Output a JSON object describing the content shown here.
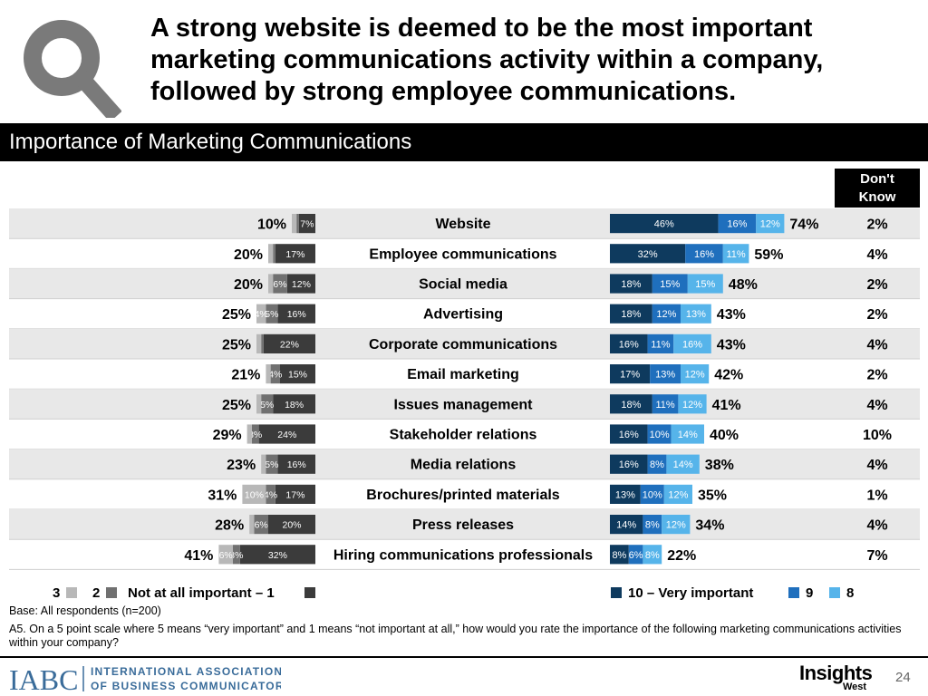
{
  "headline": "A strong website is deemed to be the most important marketing communications activity within a company, followed by strong employee communications.",
  "banner": "Importance of Marketing Communications",
  "dont_know_header": [
    "Don't",
    "Know"
  ],
  "colors": {
    "c10": "#0e3a5e",
    "c9": "#1f6fbd",
    "c8": "#56b4ea",
    "c3": "#b8b8b8",
    "c2": "#707070",
    "c1": "#3b3b3b",
    "row_stripe": "#e8e8e8"
  },
  "chart_data": {
    "type": "bar",
    "title": "Importance of Marketing Communications",
    "categories": [
      "Website",
      "Employee communications",
      "Social media",
      "Advertising",
      "Corporate communications",
      "Email marketing",
      "Issues management",
      "Stakeholder relations",
      "Media relations",
      "Brochures/printed materials",
      "Press releases",
      "Hiring communications professionals"
    ],
    "important_series": [
      {
        "name": "10 – Very important",
        "values": [
          46,
          32,
          18,
          18,
          16,
          17,
          18,
          16,
          16,
          13,
          14,
          8
        ]
      },
      {
        "name": "9",
        "values": [
          16,
          16,
          15,
          12,
          11,
          13,
          11,
          10,
          8,
          10,
          8,
          6
        ]
      },
      {
        "name": "8",
        "values": [
          12,
          11,
          15,
          13,
          16,
          12,
          12,
          14,
          14,
          12,
          12,
          8
        ]
      }
    ],
    "important_totals": [
      "74%",
      "59%",
      "48%",
      "43%",
      "43%",
      "42%",
      "41%",
      "40%",
      "38%",
      "35%",
      "34%",
      "22%"
    ],
    "unimportant_series": [
      {
        "name": "3",
        "values": [
          2,
          2,
          2,
          4,
          2,
          2,
          2,
          2,
          2,
          10,
          2,
          6
        ]
      },
      {
        "name": "2",
        "values": [
          1,
          1,
          6,
          5,
          1,
          4,
          5,
          3,
          5,
          4,
          6,
          3
        ]
      },
      {
        "name": "Not at all important – 1",
        "values": [
          7,
          17,
          12,
          16,
          22,
          15,
          18,
          24,
          16,
          17,
          20,
          32
        ]
      }
    ],
    "unimportant_labels": [
      [
        "",
        "",
        "7%"
      ],
      [
        "",
        "",
        "17%"
      ],
      [
        "",
        "6%",
        "12%"
      ],
      [
        "4%",
        "5%",
        "16%"
      ],
      [
        "",
        "",
        "22%"
      ],
      [
        "",
        "4%",
        "15%"
      ],
      [
        "",
        "5%",
        "18%"
      ],
      [
        "",
        "3%",
        "24%"
      ],
      [
        "",
        "5%",
        "16%"
      ],
      [
        "10%",
        "4%",
        "17%"
      ],
      [
        "",
        "6%",
        "20%"
      ],
      [
        "6%",
        "3%",
        "32%"
      ]
    ],
    "unimportant_totals": [
      "10%",
      "20%",
      "20%",
      "25%",
      "25%",
      "21%",
      "25%",
      "29%",
      "23%",
      "31%",
      "28%",
      "41%"
    ],
    "dont_know": [
      "2%",
      "4%",
      "2%",
      "2%",
      "4%",
      "2%",
      "4%",
      "10%",
      "4%",
      "1%",
      "4%",
      "7%"
    ],
    "legend_left": [
      "3",
      "2",
      "Not at all important – 1"
    ],
    "legend_right": [
      "10 – Very important",
      "9",
      "8"
    ]
  },
  "base_note": "Base: All respondents (n=200)",
  "question": "A5. On a 5 point scale where 5 means “very important” and 1 means “not important at all,” how would you rate the importance of the following marketing communications activities within your company?",
  "iabc": {
    "mark": "IABC",
    "line1": "INTERNATIONAL ASSOCIATION",
    "line2": "OF BUSINESS COMMUNICATORS"
  },
  "insights": {
    "main": "Insights",
    "sub": "West"
  },
  "page_number": "24"
}
